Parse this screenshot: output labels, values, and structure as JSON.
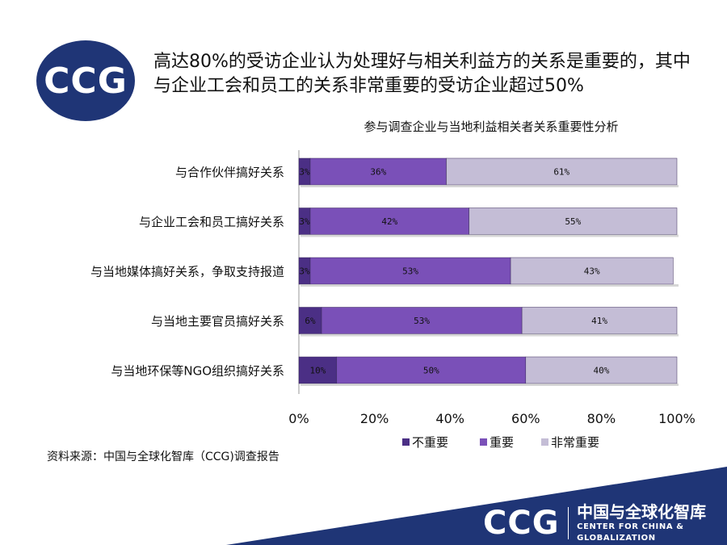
{
  "logo": {
    "text": "CCG"
  },
  "headline": "高达80%的受访企业认为处理好与相关利益方的关系是重要的，其中与企业工会和员工的关系非常重要的受访企业超过50%",
  "source": "资料来源：中国与全球化智库（CCG)调查报告",
  "footer": {
    "logo": "CCG",
    "org_cn": "中国与全球化智库",
    "org_en": "CENTER FOR CHINA & GLOBALIZATION"
  },
  "colors": {
    "brand": "#1f3576",
    "series": [
      "#4b2f85",
      "#7a50b8",
      "#c4bdd6"
    ]
  },
  "chart_data": {
    "type": "bar",
    "orientation": "horizontal",
    "stacked": "percent",
    "title": "参与调查企业与当地利益相关者关系重要性分析",
    "categories": [
      "与合作伙伴搞好关系",
      "与企业工会和员工搞好关系",
      "与当地媒体搞好关系，争取支持报道",
      "与当地主要官员搞好关系",
      "与当地环保等NGO组织搞好关系"
    ],
    "series": [
      {
        "name": "不重要",
        "values": [
          3,
          3,
          3,
          6,
          10
        ],
        "labels": [
          "3%",
          "3%",
          "3%",
          "6%",
          "10%"
        ]
      },
      {
        "name": "重要",
        "values": [
          36,
          42,
          53,
          53,
          50
        ],
        "labels": [
          "36%",
          "42%",
          "53%",
          "53%",
          "50%"
        ]
      },
      {
        "name": "非常重要",
        "values": [
          61,
          55,
          43,
          41,
          40
        ],
        "labels": [
          "61%",
          "55%",
          "43%",
          "41%",
          "40%"
        ]
      }
    ],
    "xlim": [
      0,
      100
    ],
    "xticks": [
      "0%",
      "20%",
      "40%",
      "60%",
      "80%",
      "100%"
    ],
    "legend": "bottom",
    "grid": false
  }
}
